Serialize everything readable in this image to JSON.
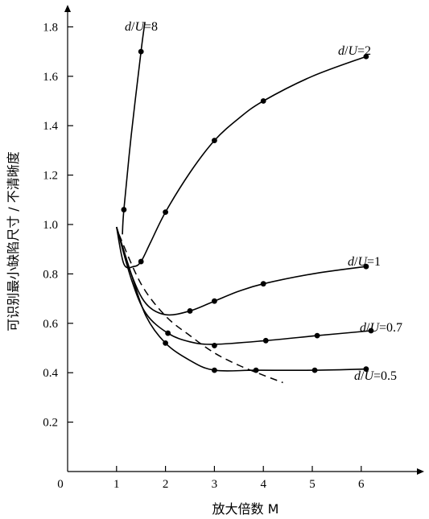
{
  "chart_data": {
    "type": "line",
    "xlabel": "放大倍数 M",
    "ylabel": "可识别最小缺陷尺寸 / 不清晰度",
    "origin_label": "0",
    "xticks": [
      1,
      2,
      3,
      4,
      5,
      6
    ],
    "yticks": [
      0.2,
      0.4,
      0.6,
      0.8,
      1.0,
      1.2,
      1.4,
      1.6,
      1.8
    ],
    "ytick_labels": [
      "0.2",
      "0.4",
      "0.6",
      "0.8",
      "1.0",
      "1.2",
      "1.4",
      "1.6",
      "1.8"
    ],
    "xlim": [
      0,
      7.2
    ],
    "ylim": [
      0,
      1.85
    ],
    "grid": false,
    "series": [
      {
        "name": "d/U=8",
        "label_parts": {
          "d": "d",
          "sep": "/",
          "u": "U",
          "eq": "=",
          "val": "8"
        },
        "markers": [
          [
            1.15,
            1.06
          ],
          [
            1.5,
            1.7
          ]
        ],
        "path": [
          [
            1.12,
            0.96
          ],
          [
            1.15,
            1.06
          ],
          [
            1.3,
            1.36
          ],
          [
            1.5,
            1.7
          ],
          [
            1.58,
            1.82
          ]
        ]
      },
      {
        "name": "d/U=2",
        "label_parts": {
          "d": "d",
          "sep": "/",
          "u": "U",
          "eq": "=",
          "val": "2"
        },
        "markers": [
          [
            1.5,
            0.85
          ],
          [
            2.0,
            1.05
          ],
          [
            3.0,
            1.34
          ],
          [
            4.0,
            1.5
          ],
          [
            6.1,
            1.68
          ]
        ],
        "path": [
          [
            1.0,
            0.99
          ],
          [
            1.15,
            0.84
          ],
          [
            1.35,
            0.83
          ],
          [
            1.5,
            0.85
          ],
          [
            1.7,
            0.93
          ],
          [
            2.0,
            1.05
          ],
          [
            2.5,
            1.21
          ],
          [
            3.0,
            1.34
          ],
          [
            3.5,
            1.43
          ],
          [
            4.0,
            1.5
          ],
          [
            5.0,
            1.6
          ],
          [
            6.1,
            1.68
          ]
        ]
      },
      {
        "name": "d/U=1",
        "label_parts": {
          "d": "d",
          "sep": "/",
          "u": "U",
          "eq": "=",
          "val": "1"
        },
        "markers": [
          [
            2.5,
            0.65
          ],
          [
            3.0,
            0.69
          ],
          [
            4.0,
            0.76
          ],
          [
            6.1,
            0.83
          ]
        ],
        "path": [
          [
            1.0,
            0.99
          ],
          [
            1.3,
            0.8
          ],
          [
            1.6,
            0.68
          ],
          [
            2.0,
            0.635
          ],
          [
            2.5,
            0.65
          ],
          [
            3.0,
            0.69
          ],
          [
            3.5,
            0.73
          ],
          [
            4.0,
            0.76
          ],
          [
            5.0,
            0.8
          ],
          [
            6.1,
            0.83
          ]
        ]
      },
      {
        "name": "d/U=0.7",
        "label_parts": {
          "d": "d",
          "sep": "/",
          "u": "U",
          "eq": "=",
          "val": "0.7"
        },
        "markers": [
          [
            2.05,
            0.56
          ],
          [
            3.0,
            0.51
          ],
          [
            4.05,
            0.53
          ],
          [
            5.1,
            0.55
          ],
          [
            6.2,
            0.57
          ]
        ],
        "path": [
          [
            1.0,
            0.99
          ],
          [
            1.3,
            0.78
          ],
          [
            1.6,
            0.64
          ],
          [
            2.05,
            0.56
          ],
          [
            2.5,
            0.525
          ],
          [
            3.0,
            0.515
          ],
          [
            4.05,
            0.53
          ],
          [
            5.1,
            0.55
          ],
          [
            6.2,
            0.57
          ]
        ]
      },
      {
        "name": "d/U=0.5",
        "label_parts": {
          "d": "d",
          "sep": "/",
          "u": "U",
          "eq": "=",
          "val": "0.5"
        },
        "markers": [
          [
            2.0,
            0.52
          ],
          [
            3.0,
            0.41
          ],
          [
            3.85,
            0.41
          ],
          [
            5.05,
            0.41
          ],
          [
            6.1,
            0.415
          ]
        ],
        "path": [
          [
            1.0,
            0.99
          ],
          [
            1.3,
            0.8
          ],
          [
            1.6,
            0.63
          ],
          [
            2.0,
            0.52
          ],
          [
            2.5,
            0.45
          ],
          [
            3.0,
            0.41
          ],
          [
            3.85,
            0.41
          ],
          [
            5.05,
            0.41
          ],
          [
            6.1,
            0.415
          ]
        ]
      }
    ],
    "dashed_curve": {
      "path": [
        [
          1.05,
          0.96
        ],
        [
          1.5,
          0.76
        ],
        [
          2.0,
          0.63
        ],
        [
          2.5,
          0.55
        ],
        [
          3.0,
          0.48
        ],
        [
          3.5,
          0.43
        ],
        [
          4.0,
          0.39
        ],
        [
          4.4,
          0.36
        ]
      ]
    }
  }
}
